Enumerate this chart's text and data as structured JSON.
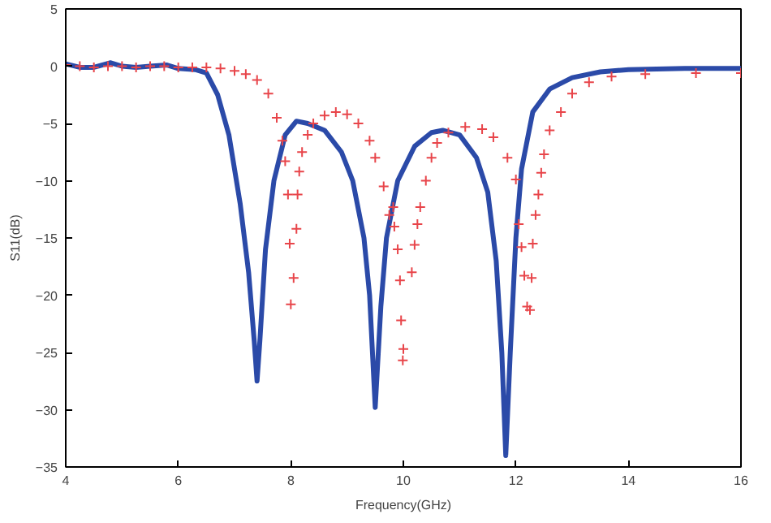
{
  "chart_data": {
    "type": "line",
    "xlabel": "Frequency(GHz)",
    "ylabel": "S11(dB)",
    "xlim": [
      4,
      16
    ],
    "ylim": [
      -35,
      5
    ],
    "xticks": [
      4,
      6,
      8,
      10,
      12,
      14,
      16
    ],
    "yticks": [
      -35,
      -30,
      -25,
      -20,
      -15,
      -10,
      -5,
      0,
      5
    ],
    "grid": false,
    "series": [
      {
        "type": "scatter",
        "marker": "cross",
        "color": "#e8454a",
        "x": [
          4,
          4.25,
          4.5,
          4.75,
          5,
          5.25,
          5.5,
          5.75,
          6,
          6.25,
          6.5,
          6.75,
          7,
          7.2,
          7.4,
          7.6,
          7.75,
          7.85,
          7.9,
          7.95,
          7.98,
          8.0,
          8.05,
          8.1,
          8.12,
          8.15,
          8.2,
          8.3,
          8.4,
          8.6,
          8.8,
          9.0,
          9.2,
          9.4,
          9.5,
          9.65,
          9.75,
          9.82,
          9.84,
          9.9,
          9.94,
          9.96,
          9.99,
          10.0,
          10.15,
          10.2,
          10.25,
          10.3,
          10.4,
          10.5,
          10.6,
          10.8,
          11.1,
          11.4,
          11.6,
          11.85,
          12.0,
          12.05,
          12.1,
          12.15,
          12.2,
          12.25,
          12.28,
          12.3,
          12.35,
          12.4,
          12.45,
          12.5,
          12.6,
          12.8,
          13.0,
          13.3,
          13.7,
          14.3,
          15.2,
          16
        ],
        "values": [
          0.1,
          0,
          -0.1,
          0,
          0,
          -0.1,
          0,
          0,
          -0.1,
          -0.1,
          -0.1,
          -0.2,
          -0.4,
          -0.7,
          -1.2,
          -2.4,
          -4.5,
          -6.5,
          -8.3,
          -11.2,
          -15.5,
          -20.8,
          -18.5,
          -14.2,
          -11.2,
          -9.2,
          -7.5,
          -6,
          -5,
          -4.3,
          -4,
          -4.2,
          -5,
          -6.5,
          -8,
          -10.5,
          -13,
          -12.3,
          -14,
          -16,
          -18.7,
          -22.2,
          -25.7,
          -24.7,
          -18,
          -15.6,
          -13.8,
          -12.3,
          -10,
          -8,
          -6.7,
          -5.8,
          -5.3,
          -5.5,
          -6.2,
          -8,
          -9.9,
          -13.8,
          -15.8,
          -18.3,
          -21,
          -21.3,
          -18.5,
          -15.5,
          -13,
          -11.2,
          -9.3,
          -7.7,
          -5.6,
          -4,
          -2.4,
          -1.4,
          -0.9,
          -0.7,
          -0.6,
          -0.6
        ]
      },
      {
        "marker": "none",
        "color": "#2b4aa8",
        "x": [
          4,
          4.25,
          4.5,
          4.8,
          5,
          5.25,
          5.5,
          5.8,
          6,
          6.3,
          6.5,
          6.7,
          6.9,
          7.1,
          7.25,
          7.35,
          7.4,
          7.45,
          7.55,
          7.7,
          7.9,
          8.1,
          8.3,
          8.6,
          8.9,
          9.1,
          9.3,
          9.4,
          9.5,
          9.6,
          9.7,
          9.9,
          10.2,
          10.5,
          10.7,
          11.0,
          11.3,
          11.5,
          11.65,
          11.75,
          11.82,
          11.9,
          12.0,
          12.1,
          12.3,
          12.6,
          13,
          13.5,
          14,
          15,
          16
        ],
        "values": [
          0.2,
          -0.1,
          -0.1,
          0.3,
          0,
          -0.1,
          0,
          0.1,
          -0.2,
          -0.3,
          -0.6,
          -2.5,
          -6,
          -12,
          -18,
          -24,
          -27.5,
          -24,
          -16,
          -10,
          -6,
          -4.8,
          -5,
          -5.6,
          -7.5,
          -10,
          -15,
          -20,
          -29.8,
          -21,
          -15,
          -10,
          -7,
          -5.8,
          -5.6,
          -6,
          -8,
          -11,
          -17,
          -25,
          -34,
          -25,
          -15,
          -9,
          -4,
          -2,
          -1,
          -0.5,
          -0.3,
          -0.2,
          -0.2
        ]
      }
    ]
  }
}
